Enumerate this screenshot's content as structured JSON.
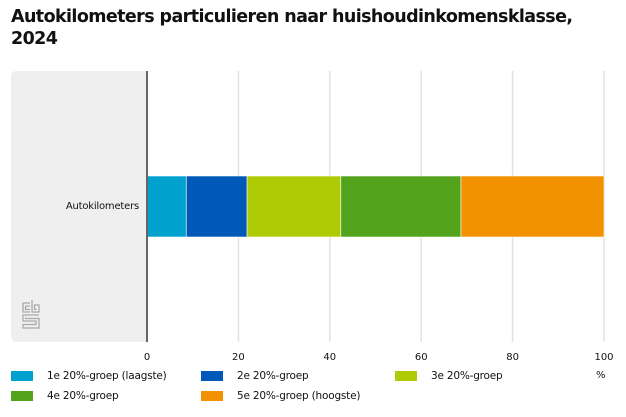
{
  "chart_data": {
    "type": "bar",
    "orientation": "horizontal",
    "stacked": true,
    "title": "Autokilometers particulieren naar huishoudinkomensklasse, 2024",
    "categories": [
      "Autokilometers"
    ],
    "series": [
      {
        "name": "1e 20%-groep (laagste)",
        "color": "#00a1cd",
        "values": [
          8.6
        ]
      },
      {
        "name": "2e 20%-groep",
        "color": "#0058b8",
        "values": [
          13.3
        ]
      },
      {
        "name": "3e 20%-groep",
        "color": "#afcb05",
        "values": [
          20.5
        ]
      },
      {
        "name": "4e 20%-groep",
        "color": "#53a31d",
        "values": [
          26.3
        ]
      },
      {
        "name": "5e 20%-groep (hoogste)",
        "color": "#f39200",
        "values": [
          31.3
        ]
      }
    ],
    "xlabel": "%",
    "ylabel": "",
    "xlim": [
      0,
      100
    ],
    "xticks": [
      0,
      20,
      40,
      60,
      80,
      100
    ],
    "xtick_labels": [
      "0",
      "20",
      "40",
      "60",
      "80",
      "100"
    ],
    "grid": true,
    "legend_position": "bottom"
  },
  "header": {
    "title_line1": "Autokilometers particulieren naar huishoudinkomensklasse,",
    "title_line2": "2024"
  },
  "logo": {
    "icon": "cbs-logo-icon"
  }
}
